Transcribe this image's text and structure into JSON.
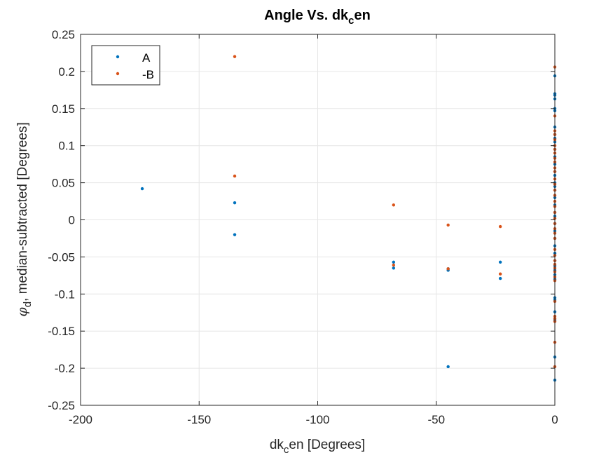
{
  "chart_data": {
    "type": "scatter",
    "title": {
      "main": "Angle Vs. dk",
      "sub": "c",
      "tail": "en"
    },
    "xlabel": {
      "main": "dk",
      "sub": "c",
      "tail": "en [Degrees]"
    },
    "ylabel": {
      "symbol": "φ",
      "sub": "d",
      "tail": ", median-subtracted [Degrees]"
    },
    "xlim": [
      -200,
      0
    ],
    "ylim": [
      -0.25,
      0.25
    ],
    "xticks": [
      -200,
      -150,
      -100,
      -50,
      0
    ],
    "xtick_labels": [
      "-200",
      "-150",
      "-100",
      "-50",
      "0"
    ],
    "yticks": [
      0.25,
      0.2,
      0.15,
      0.1,
      0.05,
      0,
      -0.05,
      -0.1,
      -0.15,
      -0.2,
      -0.25
    ],
    "ytick_labels": [
      "0.25",
      "0.2",
      "0.15",
      "0.1",
      "0.05",
      "0",
      "-0.05",
      "-0.1",
      "-0.15",
      "-0.2",
      "-0.25"
    ],
    "grid": true,
    "legend_position": "top-left",
    "series": [
      {
        "name": "A",
        "color": "#0072bd",
        "points": [
          [
            -174,
            0.042
          ],
          [
            -135,
            0.023
          ],
          [
            -135,
            -0.02
          ],
          [
            -68,
            -0.057
          ],
          [
            -68,
            -0.065
          ],
          [
            -45,
            -0.066
          ],
          [
            -45,
            -0.068
          ],
          [
            -45,
            -0.198
          ],
          [
            -23,
            -0.057
          ],
          [
            -23,
            -0.079
          ],
          [
            0,
            0.194
          ],
          [
            0,
            0.17
          ],
          [
            0,
            0.168
          ],
          [
            0,
            0.163
          ],
          [
            0,
            0.15
          ],
          [
            0,
            0.147
          ],
          [
            0,
            0.125
          ],
          [
            0,
            0.115
          ],
          [
            0,
            0.11
          ],
          [
            0,
            0.105
          ],
          [
            0,
            0.095
          ],
          [
            0,
            0.085
          ],
          [
            0,
            0.075
          ],
          [
            0,
            0.065
          ],
          [
            0,
            0.06
          ],
          [
            0,
            0.05
          ],
          [
            0,
            0.045
          ],
          [
            0,
            0.04
          ],
          [
            0,
            0.03
          ],
          [
            0,
            0.02
          ],
          [
            0,
            0.01
          ],
          [
            0,
            0.005
          ],
          [
            0,
            -0.005
          ],
          [
            0,
            -0.015
          ],
          [
            0,
            -0.025
          ],
          [
            0,
            -0.035
          ],
          [
            0,
            -0.045
          ],
          [
            0,
            -0.055
          ],
          [
            0,
            -0.062
          ],
          [
            0,
            -0.068
          ],
          [
            0,
            -0.074
          ],
          [
            0,
            -0.08
          ],
          [
            0,
            -0.105
          ],
          [
            0,
            -0.108
          ],
          [
            0,
            -0.124
          ],
          [
            0,
            -0.135
          ],
          [
            0,
            -0.185
          ],
          [
            0,
            -0.216
          ]
        ]
      },
      {
        "name": "-B",
        "color": "#d95319",
        "points": [
          [
            -135,
            0.22
          ],
          [
            -135,
            0.059
          ],
          [
            -68,
            0.02
          ],
          [
            -68,
            -0.061
          ],
          [
            -45,
            -0.007
          ],
          [
            -45,
            -0.066
          ],
          [
            -23,
            -0.009
          ],
          [
            -23,
            -0.073
          ],
          [
            0,
            0.206
          ],
          [
            0,
            0.14
          ],
          [
            0,
            0.12
          ],
          [
            0,
            0.115
          ],
          [
            0,
            0.108
          ],
          [
            0,
            0.1
          ],
          [
            0,
            0.095
          ],
          [
            0,
            0.09
          ],
          [
            0,
            0.083
          ],
          [
            0,
            0.078
          ],
          [
            0,
            0.07
          ],
          [
            0,
            0.065
          ],
          [
            0,
            0.055
          ],
          [
            0,
            0.048
          ],
          [
            0,
            0.04
          ],
          [
            0,
            0.033
          ],
          [
            0,
            0.025
          ],
          [
            0,
            0.018
          ],
          [
            0,
            0.01
          ],
          [
            0,
            0.002
          ],
          [
            0,
            -0.005
          ],
          [
            0,
            -0.012
          ],
          [
            0,
            -0.018
          ],
          [
            0,
            -0.025
          ],
          [
            0,
            -0.04
          ],
          [
            0,
            -0.048
          ],
          [
            0,
            -0.055
          ],
          [
            0,
            -0.06
          ],
          [
            0,
            -0.065
          ],
          [
            0,
            -0.07
          ],
          [
            0,
            -0.077
          ],
          [
            0,
            -0.082
          ],
          [
            0,
            -0.11
          ],
          [
            0,
            -0.13
          ],
          [
            0,
            -0.133
          ],
          [
            0,
            -0.137
          ],
          [
            0,
            -0.165
          ],
          [
            0,
            -0.198
          ]
        ]
      }
    ]
  }
}
